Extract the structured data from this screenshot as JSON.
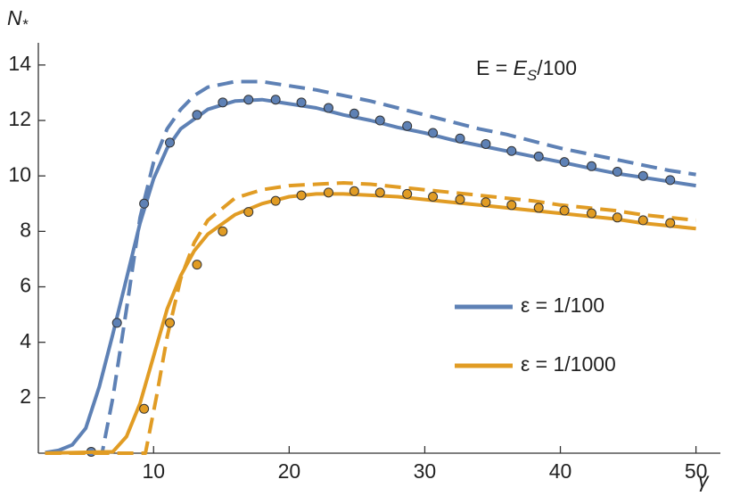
{
  "chart_data": {
    "type": "line",
    "ylabel": {
      "text": "N",
      "sub": "*"
    },
    "xlabel": "γ",
    "annotation": {
      "text": "E = ",
      "var": "E",
      "sub": "S",
      "rest": "/100"
    },
    "xlim": [
      1.5,
      51.8
    ],
    "ylim": [
      0,
      14.8
    ],
    "xticks": [
      10,
      20,
      30,
      40,
      50
    ],
    "yticks": [
      2,
      4,
      6,
      8,
      10,
      12,
      14
    ],
    "series": [
      {
        "name": "ε = 1/100",
        "color": "#5e81b5",
        "style": "solid",
        "x": [
          2,
          3,
          4,
          5,
          6,
          7,
          8,
          9,
          10,
          11,
          12,
          14,
          16,
          18,
          20,
          22,
          24,
          26,
          28,
          30,
          32,
          34,
          36,
          38,
          40,
          42,
          44,
          46,
          48,
          50
        ],
        "values": [
          0.02,
          0.1,
          0.3,
          0.9,
          2.4,
          4.3,
          6.3,
          8.3,
          9.9,
          11.0,
          11.7,
          12.4,
          12.7,
          12.75,
          12.6,
          12.45,
          12.2,
          12.0,
          11.75,
          11.55,
          11.3,
          11.1,
          10.9,
          10.7,
          10.5,
          10.3,
          10.1,
          9.95,
          9.8,
          9.65
        ]
      },
      {
        "color": "#5e81b5",
        "style": "dashed",
        "x": [
          2,
          6.2,
          7,
          8,
          9,
          10,
          11,
          12,
          13,
          14,
          16,
          18,
          20,
          22,
          24,
          26,
          28,
          30,
          32,
          34,
          36,
          38,
          40,
          42,
          44,
          46,
          48,
          50
        ],
        "values": [
          0,
          0,
          2.0,
          5.2,
          8.5,
          10.5,
          11.7,
          12.4,
          12.9,
          13.2,
          13.4,
          13.4,
          13.25,
          13.1,
          12.9,
          12.7,
          12.45,
          12.2,
          11.95,
          11.7,
          11.5,
          11.25,
          11.0,
          10.8,
          10.6,
          10.4,
          10.2,
          10.05
        ]
      },
      {
        "color": "#5e81b5",
        "style": "markers",
        "x": [
          5.4,
          7.3,
          9.3,
          11.2,
          13.2,
          15.1,
          17.0,
          19.0,
          20.9,
          22.9,
          24.8,
          26.7,
          28.7,
          30.6,
          32.6,
          34.5,
          36.4,
          38.4,
          40.3,
          42.3,
          44.2,
          46.1,
          48.1
        ],
        "values": [
          0.05,
          4.7,
          9.0,
          11.2,
          12.2,
          12.65,
          12.75,
          12.75,
          12.65,
          12.45,
          12.25,
          12.0,
          11.8,
          11.55,
          11.35,
          11.15,
          10.9,
          10.7,
          10.5,
          10.35,
          10.15,
          10.0,
          9.85
        ]
      },
      {
        "name": "ε = 1/1000",
        "color": "#e19c24",
        "style": "solid",
        "x": [
          2,
          7,
          8,
          9,
          10,
          11,
          12,
          13,
          14,
          16,
          18,
          20,
          22,
          24,
          26,
          28,
          30,
          32,
          34,
          36,
          38,
          40,
          42,
          44,
          46,
          48,
          50
        ],
        "values": [
          0,
          0.05,
          0.6,
          1.8,
          3.5,
          5.2,
          6.4,
          7.3,
          7.9,
          8.6,
          9.0,
          9.25,
          9.35,
          9.35,
          9.3,
          9.25,
          9.15,
          9.05,
          8.95,
          8.85,
          8.75,
          8.65,
          8.55,
          8.45,
          8.3,
          8.2,
          8.1
        ]
      },
      {
        "color": "#e19c24",
        "style": "dashed",
        "x": [
          2,
          9.4,
          10.2,
          11,
          12,
          13,
          14,
          16,
          18,
          20,
          22,
          24,
          26,
          28,
          30,
          32,
          34,
          36,
          38,
          40,
          42,
          44,
          46,
          48,
          50
        ],
        "values": [
          0,
          0,
          2.0,
          4.2,
          6.3,
          7.6,
          8.4,
          9.2,
          9.5,
          9.65,
          9.7,
          9.75,
          9.7,
          9.6,
          9.5,
          9.4,
          9.3,
          9.2,
          9.1,
          8.95,
          8.85,
          8.75,
          8.6,
          8.5,
          8.4
        ]
      },
      {
        "color": "#e19c24",
        "style": "markers",
        "x": [
          9.3,
          11.2,
          13.2,
          15.1,
          17.0,
          19.0,
          20.9,
          22.9,
          24.8,
          26.7,
          28.7,
          30.6,
          32.6,
          34.5,
          36.4,
          38.4,
          40.3,
          42.3,
          44.2,
          46.1,
          48.1
        ],
        "values": [
          1.6,
          4.7,
          6.8,
          8.0,
          8.7,
          9.1,
          9.3,
          9.4,
          9.45,
          9.4,
          9.35,
          9.25,
          9.15,
          9.05,
          8.95,
          8.85,
          8.75,
          8.65,
          8.5,
          8.4,
          8.3
        ]
      }
    ]
  }
}
